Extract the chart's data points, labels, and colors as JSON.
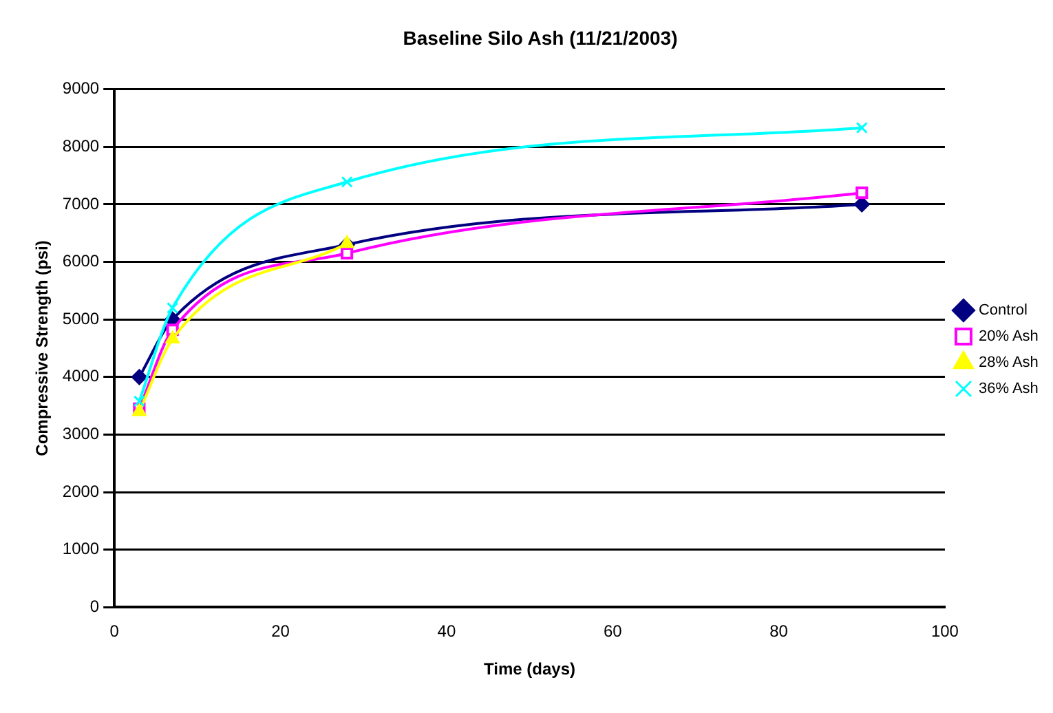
{
  "chart_data": {
    "type": "line",
    "title": "Baseline Silo Ash (11/21/2003)",
    "xlabel": "Time (days)",
    "ylabel": "Compressive Strength (psi)",
    "x": [
      3,
      7,
      28,
      90
    ],
    "series": [
      {
        "name": "Control",
        "color": "#000080",
        "marker": "diamond",
        "values": [
          4000,
          5000,
          6300,
          7000
        ]
      },
      {
        "name": "20% Ash",
        "color": "#ff00ff",
        "marker": "square",
        "values": [
          3450,
          4820,
          6150,
          7200
        ]
      },
      {
        "name": "28% Ash",
        "color": "#ffff00",
        "marker": "triangle",
        "values": [
          3400,
          4660,
          6320,
          null
        ]
      },
      {
        "name": "36% Ash",
        "color": "#00ffff",
        "marker": "cross",
        "values": [
          3580,
          5200,
          7390,
          8330
        ]
      }
    ],
    "xlim": [
      0,
      100
    ],
    "xticks": [
      0,
      20,
      40,
      60,
      80,
      100
    ],
    "ylim": [
      0,
      9000
    ],
    "yticks": [
      0,
      1000,
      2000,
      3000,
      4000,
      5000,
      6000,
      7000,
      8000,
      9000
    ],
    "grid": "y",
    "legend": "right",
    "line_style": "solid"
  }
}
